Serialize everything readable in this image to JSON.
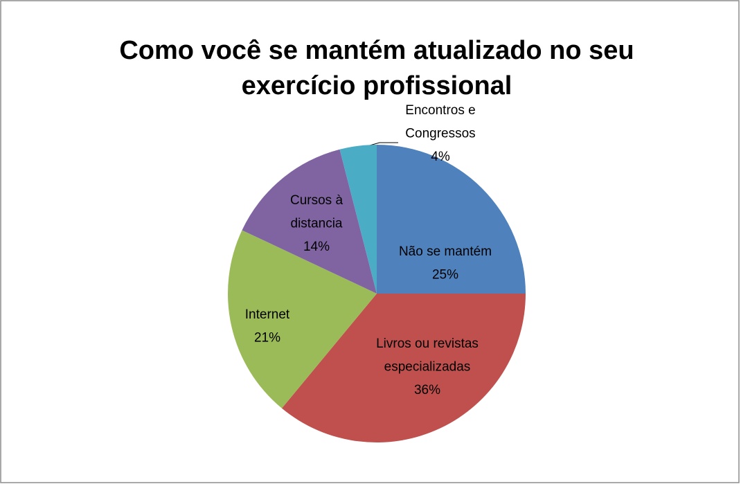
{
  "chart_data": {
    "type": "pie",
    "title_lines": [
      "Como você se mantém atualizado no seu",
      "exercício profissional"
    ],
    "categories": [
      "Não se mantém",
      "Livros ou revistas especializadas",
      "Internet",
      "Cursos à distancia",
      "Encontros e Congressos"
    ],
    "values": [
      25,
      36,
      21,
      14,
      4
    ],
    "value_labels": [
      "25%",
      "36%",
      "21%",
      "14%",
      "4%"
    ],
    "colors": [
      "#4f81bd",
      "#c0504d",
      "#9bbb59",
      "#8064a2",
      "#4bacc6"
    ]
  }
}
